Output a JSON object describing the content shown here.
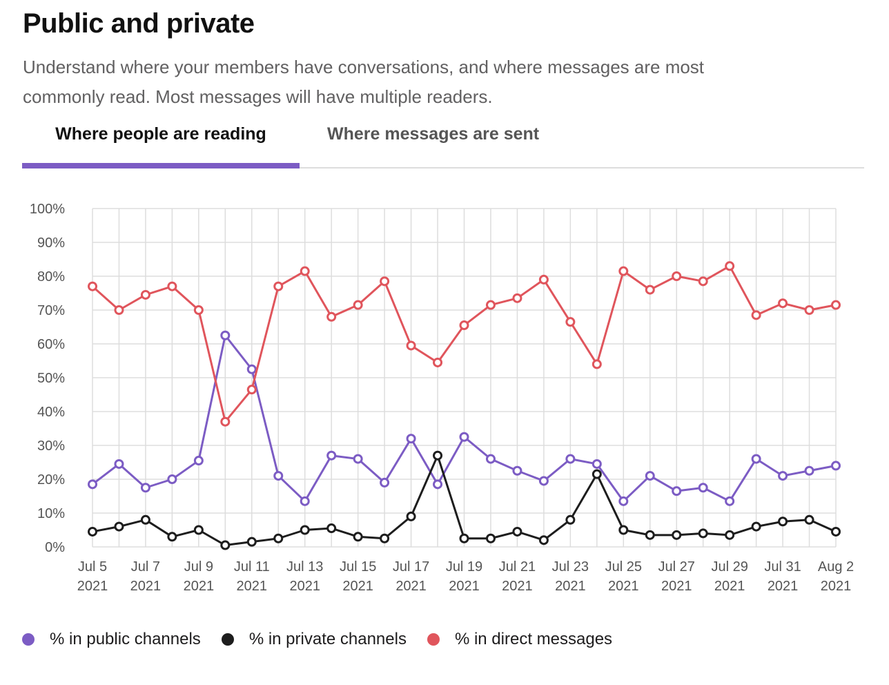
{
  "header": {
    "title": "Public and private",
    "subtitle": "Understand where your members have conversations, and where messages are most commonly read. Most messages will have multiple readers."
  },
  "tabs": [
    {
      "label": "Where people are reading",
      "active": true
    },
    {
      "label": "Where messages are sent",
      "active": false
    }
  ],
  "colors": {
    "accent": "#7c5cc4",
    "public": "#7c5cc4",
    "private": "#1d1d1d",
    "direct": "#e0555c",
    "grid": "#dddddd"
  },
  "chart_data": {
    "type": "line",
    "ylim": [
      0,
      100
    ],
    "yticks": [
      "0%",
      "10%",
      "20%",
      "30%",
      "40%",
      "50%",
      "60%",
      "70%",
      "80%",
      "90%",
      "100%"
    ],
    "grid": true,
    "legend_position": "bottom-left",
    "x": [
      "Jul 5 2021",
      "Jul 6 2021",
      "Jul 7 2021",
      "Jul 8 2021",
      "Jul 9 2021",
      "Jul 10 2021",
      "Jul 11 2021",
      "Jul 12 2021",
      "Jul 13 2021",
      "Jul 14 2021",
      "Jul 15 2021",
      "Jul 16 2021",
      "Jul 17 2021",
      "Jul 18 2021",
      "Jul 19 2021",
      "Jul 20 2021",
      "Jul 21 2021",
      "Jul 22 2021",
      "Jul 23 2021",
      "Jul 24 2021",
      "Jul 25 2021",
      "Jul 26 2021",
      "Jul 27 2021",
      "Jul 28 2021",
      "Jul 29 2021",
      "Jul 30 2021",
      "Jul 31 2021",
      "Aug 1 2021",
      "Aug 2 2021"
    ],
    "xtick_labels": [
      {
        "line1": "Jul 5",
        "line2": "2021",
        "index": 0
      },
      {
        "line1": "Jul 7",
        "line2": "2021",
        "index": 2
      },
      {
        "line1": "Jul 9",
        "line2": "2021",
        "index": 4
      },
      {
        "line1": "Jul 11",
        "line2": "2021",
        "index": 6
      },
      {
        "line1": "Jul 13",
        "line2": "2021",
        "index": 8
      },
      {
        "line1": "Jul 15",
        "line2": "2021",
        "index": 10
      },
      {
        "line1": "Jul 17",
        "line2": "2021",
        "index": 12
      },
      {
        "line1": "Jul 19",
        "line2": "2021",
        "index": 14
      },
      {
        "line1": "Jul 21",
        "line2": "2021",
        "index": 16
      },
      {
        "line1": "Jul 23",
        "line2": "2021",
        "index": 18
      },
      {
        "line1": "Jul 25",
        "line2": "2021",
        "index": 20
      },
      {
        "line1": "Jul 27",
        "line2": "2021",
        "index": 22
      },
      {
        "line1": "Jul 29",
        "line2": "2021",
        "index": 24
      },
      {
        "line1": "Jul 31",
        "line2": "2021",
        "index": 26
      },
      {
        "line1": "Aug 2",
        "line2": "2021",
        "index": 28
      }
    ],
    "series": [
      {
        "name": "% in public channels",
        "color": "#7c5cc4",
        "values": [
          18.5,
          24.5,
          17.5,
          20,
          25.5,
          62.5,
          52.5,
          21,
          13.5,
          27,
          26,
          19,
          32,
          18.5,
          32.5,
          26,
          22.5,
          19.5,
          26,
          24.5,
          13.5,
          21,
          16.5,
          17.5,
          13.5,
          26,
          21,
          22.5,
          24
        ]
      },
      {
        "name": "% in private channels",
        "color": "#1d1d1d",
        "values": [
          4.5,
          6,
          8,
          3,
          5,
          0.5,
          1.5,
          2.5,
          5,
          5.5,
          3,
          2.5,
          9,
          27,
          2.5,
          2.5,
          4.5,
          2,
          8,
          21.5,
          5,
          3.5,
          3.5,
          4,
          3.5,
          6,
          7.5,
          8,
          4.5
        ]
      },
      {
        "name": "% in direct messages",
        "color": "#e0555c",
        "values": [
          77,
          70,
          74.5,
          77,
          70,
          37,
          46.5,
          77,
          81.5,
          68,
          71.5,
          78.5,
          59.5,
          54.5,
          65.5,
          71.5,
          73.5,
          79,
          66.5,
          54,
          81.5,
          76,
          80,
          78.5,
          83,
          68.5,
          72,
          70,
          71.5
        ]
      }
    ]
  }
}
